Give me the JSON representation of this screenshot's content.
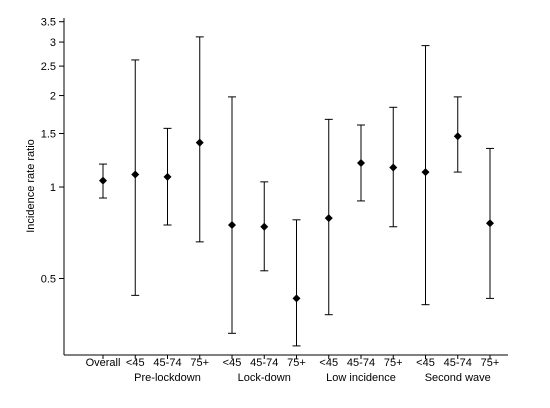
{
  "chart_data": {
    "type": "scatter",
    "subtype": "point-estimate-with-confidence-intervals",
    "ylabel": "Incidence rate ratio",
    "yscale": "log",
    "ylim": [
      0.28,
      3.6
    ],
    "yticks": [
      {
        "value": 0.5,
        "label": "0.5"
      },
      {
        "value": 1,
        "label": "1"
      },
      {
        "value": 1.5,
        "label": "1.5"
      },
      {
        "value": 2,
        "label": "2"
      },
      {
        "value": 2.5,
        "label": "2.5"
      },
      {
        "value": 3,
        "label": "3"
      },
      {
        "value": 3.5,
        "label": "3.5"
      }
    ],
    "grid": false,
    "legend": false,
    "marker": "diamond",
    "colors": {
      "marker": "#000000",
      "line": "#000000"
    },
    "groups": [
      {
        "label": "",
        "categories": [
          "Overall"
        ]
      },
      {
        "label": "Pre-lockdown",
        "categories": [
          "<45",
          "45-74",
          "75+"
        ]
      },
      {
        "label": "Lock-down",
        "categories": [
          "<45",
          "45-74",
          "75+"
        ]
      },
      {
        "label": "Low incidence",
        "categories": [
          "<45",
          "45-74",
          "75+"
        ]
      },
      {
        "label": "Second wave",
        "categories": [
          "<45",
          "45-74",
          "75+"
        ]
      }
    ],
    "points": [
      {
        "category": "Overall",
        "estimate": 1.05,
        "lower": 0.92,
        "upper": 1.19
      },
      {
        "category": "<45",
        "estimate": 1.1,
        "lower": 0.44,
        "upper": 2.62
      },
      {
        "category": "45-74",
        "estimate": 1.08,
        "lower": 0.75,
        "upper": 1.56
      },
      {
        "category": "75+",
        "estimate": 1.4,
        "lower": 0.66,
        "upper": 3.12
      },
      {
        "category": "<45",
        "estimate": 0.75,
        "lower": 0.33,
        "upper": 1.98
      },
      {
        "category": "45-74",
        "estimate": 0.74,
        "lower": 0.53,
        "upper": 1.04
      },
      {
        "category": "75+",
        "estimate": 0.43,
        "lower": 0.3,
        "upper": 0.78
      },
      {
        "category": "<45",
        "estimate": 0.79,
        "lower": 0.38,
        "upper": 1.67
      },
      {
        "category": "45-74",
        "estimate": 1.2,
        "lower": 0.9,
        "upper": 1.6
      },
      {
        "category": "75+",
        "estimate": 1.16,
        "lower": 0.74,
        "upper": 1.83
      },
      {
        "category": "<45",
        "estimate": 1.12,
        "lower": 0.41,
        "upper": 2.92
      },
      {
        "category": "45-74",
        "estimate": 1.47,
        "lower": 1.12,
        "upper": 1.98
      },
      {
        "category": "75+",
        "estimate": 0.76,
        "lower": 0.43,
        "upper": 1.34
      }
    ]
  }
}
